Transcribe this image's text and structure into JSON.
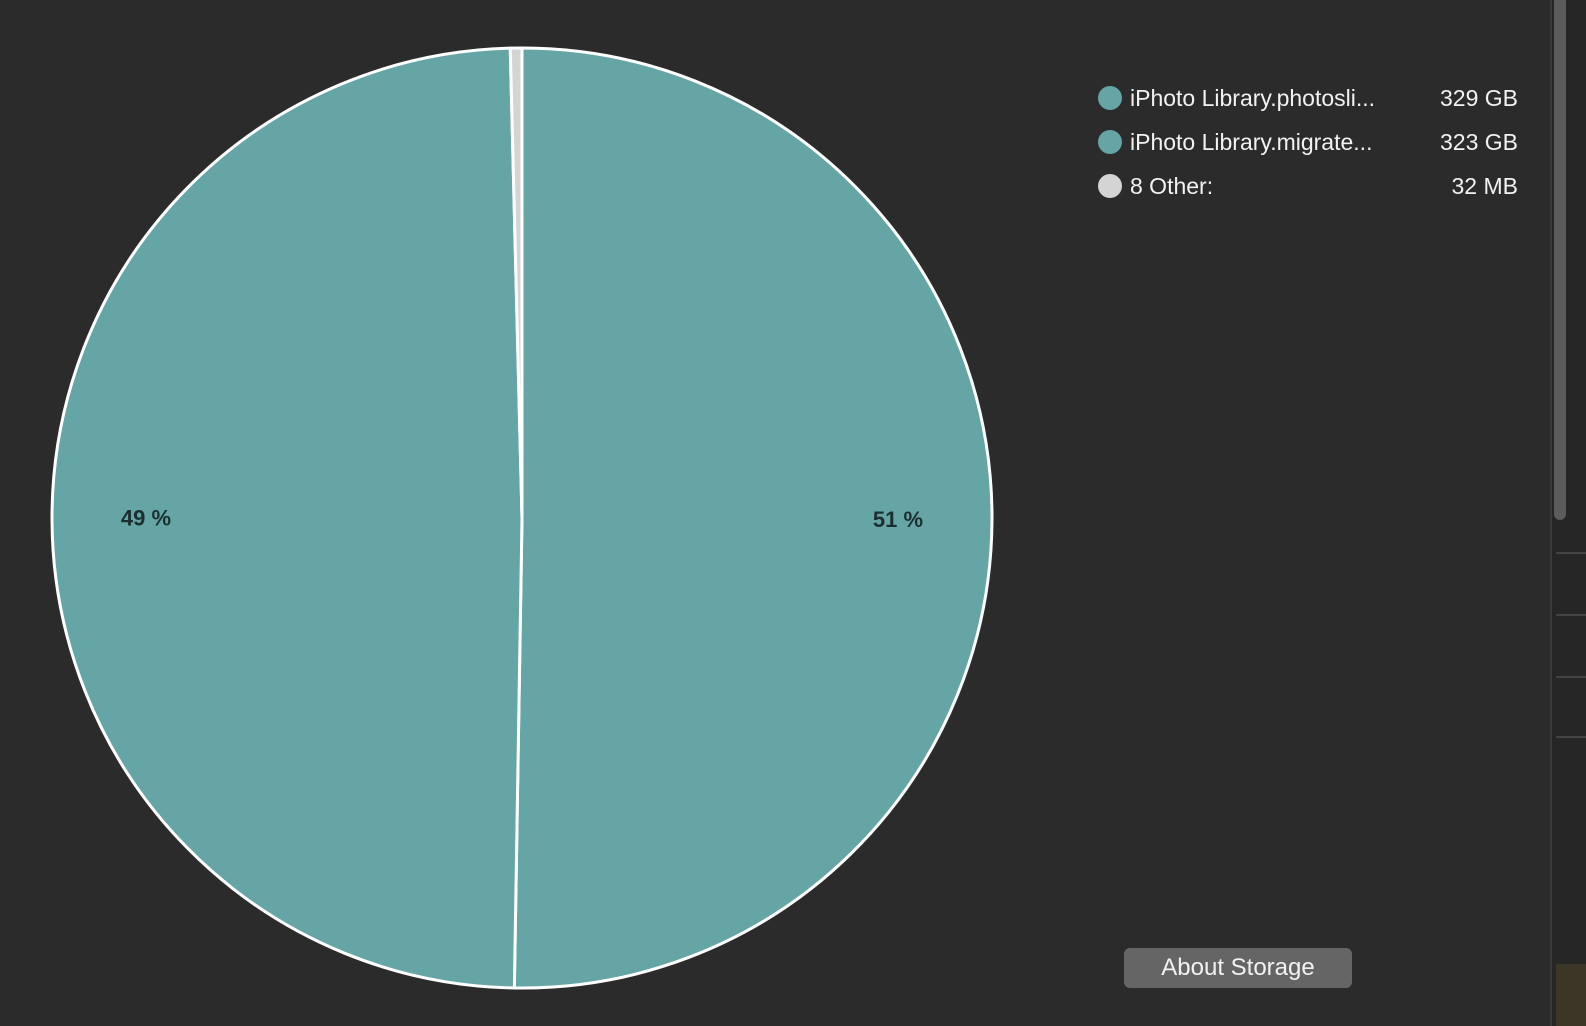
{
  "chart_data": {
    "type": "pie",
    "slices": [
      {
        "label": "iPhoto Library.photosli...",
        "size_text": "329 GB",
        "value": 329,
        "percent_label": "51 %",
        "color": "#66a5a5"
      },
      {
        "label": "iPhoto Library.migrate...",
        "size_text": "323 GB",
        "value": 323,
        "percent_label": "49 %",
        "color": "#66a5a5"
      },
      {
        "label": "8 Other:",
        "size_text": "32 MB",
        "value": 0.032,
        "percent_label": "",
        "color": "#d4d4d4"
      }
    ],
    "slice_border_color": "#ffffff",
    "label_color": "#1c2f30",
    "legend_placement": "top-right"
  },
  "about_button": {
    "label": "About Storage"
  },
  "colors": {
    "background": "#2b2b2b",
    "text": "#f2f2f2",
    "button": "#656565"
  }
}
